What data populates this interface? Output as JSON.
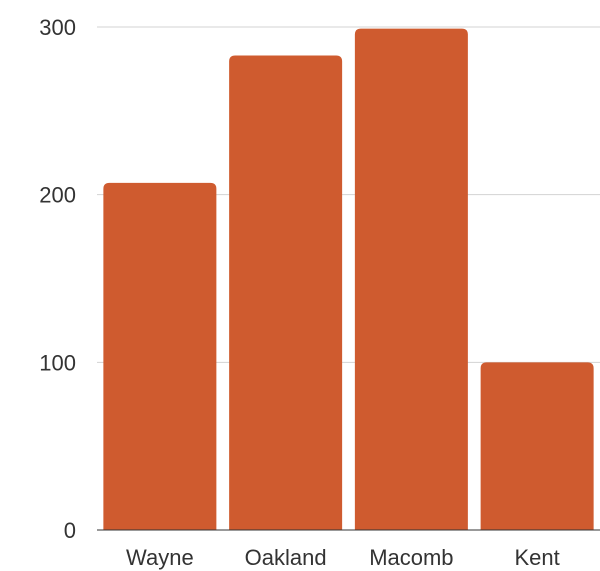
{
  "chart_data": {
    "type": "bar",
    "categories": [
      "Wayne",
      "Oakland",
      "Macomb",
      "Kent"
    ],
    "values": [
      207,
      283,
      299,
      100
    ],
    "title": "",
    "xlabel": "",
    "ylabel": "",
    "ylim": [
      0,
      300
    ],
    "yticks": [
      0,
      100,
      200,
      300
    ],
    "grid": true,
    "legend": "none",
    "colors": {
      "bar": "#CF5B2F",
      "grid": "#D3D3D3",
      "axis": "#333333",
      "text": "#333333"
    }
  }
}
